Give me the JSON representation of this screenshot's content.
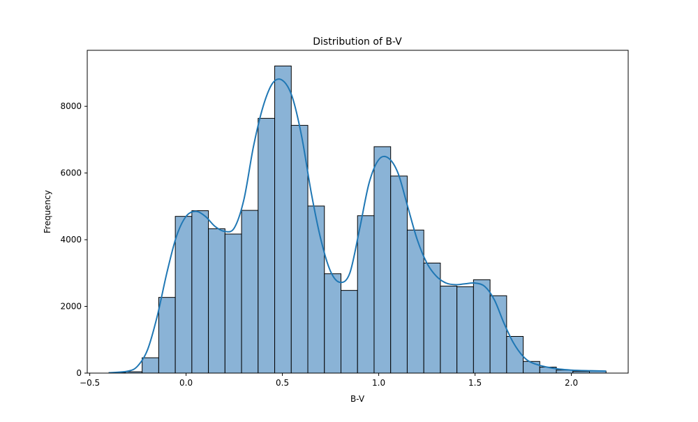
{
  "chart_data": {
    "type": "histogram",
    "title": "Distribution of B-V",
    "xlabel": "B-V",
    "ylabel": "Frequency",
    "xlim": [
      -0.513,
      2.295
    ],
    "ylim": [
      0,
      9680
    ],
    "xticks": [
      -0.5,
      0.0,
      0.5,
      1.0,
      1.5,
      2.0
    ],
    "xtick_labels": [
      "−0.5",
      "0.0",
      "0.5",
      "1.0",
      "1.5",
      "2.0"
    ],
    "yticks": [
      0,
      2000,
      4000,
      6000,
      8000
    ],
    "ytick_labels": [
      "0",
      "2000",
      "4000",
      "6000",
      "8000"
    ],
    "bin_edges": [
      -0.4,
      -0.314,
      -0.228,
      -0.142,
      -0.056,
      0.03,
      0.116,
      0.202,
      0.288,
      0.374,
      0.46,
      0.546,
      0.632,
      0.718,
      0.804,
      0.89,
      0.976,
      1.062,
      1.148,
      1.234,
      1.32,
      1.406,
      1.492,
      1.578,
      1.664,
      1.75,
      1.836,
      1.922,
      2.008,
      2.094,
      2.18
    ],
    "counts": [
      20,
      40,
      460,
      2270,
      4700,
      4870,
      4330,
      4170,
      4880,
      7640,
      9210,
      7430,
      5010,
      2980,
      2480,
      4720,
      6790,
      5910,
      4290,
      3300,
      2610,
      2590,
      2800,
      2320,
      1100,
      350,
      180,
      90,
      50,
      60
    ],
    "kde": {
      "x": [
        -0.4,
        -0.3,
        -0.25,
        -0.2,
        -0.15,
        -0.1,
        -0.05,
        0.0,
        0.05,
        0.1,
        0.15,
        0.2,
        0.25,
        0.3,
        0.35,
        0.4,
        0.45,
        0.5,
        0.55,
        0.6,
        0.65,
        0.7,
        0.75,
        0.8,
        0.85,
        0.9,
        0.95,
        1.0,
        1.05,
        1.1,
        1.15,
        1.2,
        1.25,
        1.3,
        1.35,
        1.4,
        1.45,
        1.5,
        1.55,
        1.6,
        1.65,
        1.7,
        1.75,
        1.8,
        1.9,
        2.0,
        2.1,
        2.18
      ],
      "y": [
        10,
        60,
        220,
        700,
        1700,
        3000,
        4100,
        4700,
        4850,
        4700,
        4400,
        4250,
        4350,
        5200,
        6800,
        8000,
        8700,
        8780,
        8300,
        7100,
        5400,
        4000,
        3050,
        2720,
        3000,
        4300,
        5700,
        6400,
        6450,
        6000,
        5000,
        4000,
        3300,
        2900,
        2700,
        2650,
        2680,
        2700,
        2600,
        2200,
        1500,
        900,
        500,
        300,
        150,
        90,
        70,
        60
      ]
    },
    "bar_fill": "#8ab3d6",
    "bar_edge": "#000000",
    "line_color": "#1f77b4",
    "grid": false
  }
}
